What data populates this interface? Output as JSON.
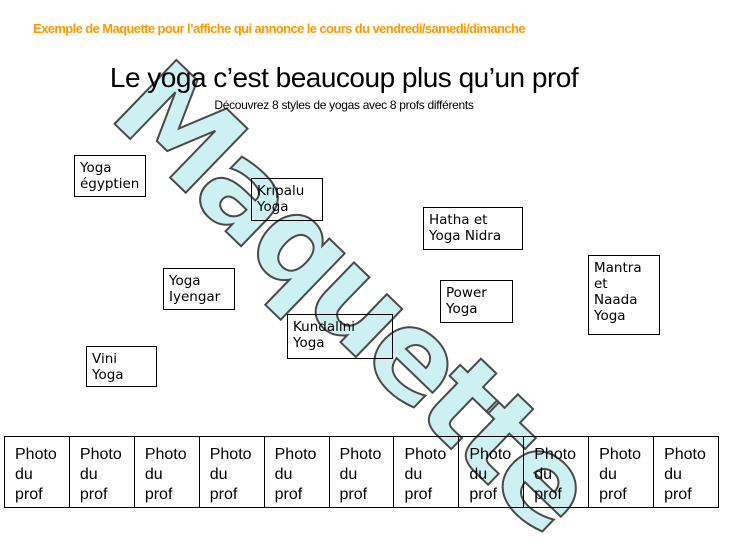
{
  "page": {
    "header_note": "Exemple de Maquette pour l’affiche qui annonce le cours du vendredi/samedi/dimanche",
    "title": "Le yoga c’est beaucoup plus qu’un prof",
    "subtitle": "Découvrez 8 styles de yogas avec 8 profs différents"
  },
  "colors": {
    "header_note_orange": "#ff9900",
    "watermark_fill": "#cdf1f3",
    "watermark_outline": "#4a4a4a",
    "box_border": "#000000",
    "background": "#ffffff"
  },
  "watermark": {
    "text": "Maquette"
  },
  "yoga_boxes": [
    {
      "label": "Yoga\négyptien"
    },
    {
      "label": "Kripalu\nYoga"
    },
    {
      "label": "Hatha et\nYoga Nidra"
    },
    {
      "label": "Yoga\nIyengar"
    },
    {
      "label": "Power\nYoga"
    },
    {
      "label": "Mantra\net\nNaada\nYoga"
    },
    {
      "label": "Kundalini\nYoga"
    },
    {
      "label": "Vini\nYoga"
    }
  ],
  "photo_row": {
    "cells": [
      "Photo\ndu\nprof",
      "Photo\ndu\nprof",
      "Photo\ndu\nprof",
      "Photo\ndu\nprof",
      "Photo\ndu\nprof",
      "Photo\ndu\nprof",
      "Photo\ndu\nprof",
      "Photo\ndu\nprof",
      "Photo\ndu\nprof",
      "Photo\ndu\nprof",
      "Photo\ndu\nprof"
    ]
  }
}
